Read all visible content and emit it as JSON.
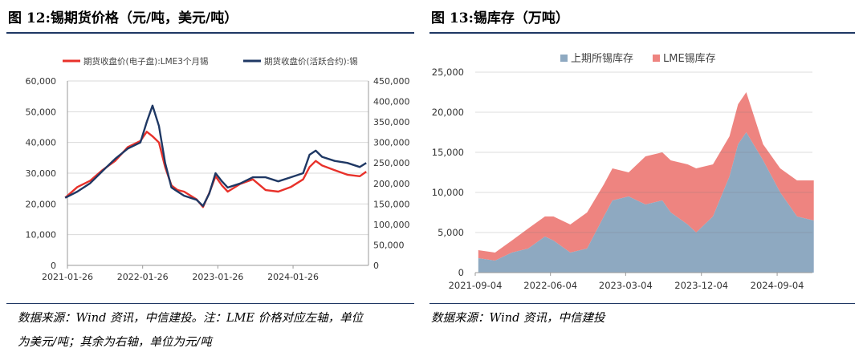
{
  "figures": {
    "left_title": "图 12:锡期货价格（元/吨，美元/吨）",
    "right_title": "图 13:锡库存（万吨）"
  },
  "notes": {
    "left_line1": "数据来源：Wind 资讯，中信建投。注：LME 价格对应左轴，单位",
    "left_line2": "为美元/吨；其余为右轴，单位为元/吨",
    "right_line1": "数据来源：Wind 资讯，中信建投"
  },
  "colors": {
    "red": "#e8312a",
    "navy": "#1f3864",
    "gray_blue": "#8ea9c1",
    "salmon": "#ee8480",
    "grid": "#d9d9d9"
  },
  "chart_data": [
    {
      "type": "line",
      "legend_placement": "top",
      "grid": true,
      "x_ticks": [
        "2021-01-26",
        "2022-01-26",
        "2023-01-26",
        "2024-01-26"
      ],
      "x_range": [
        "2021-01-26",
        "2025-01-26"
      ],
      "y_left": {
        "range": [
          0,
          60000
        ],
        "ticks": [
          "0",
          "10,000",
          "20,000",
          "30,000",
          "40,000",
          "50,000",
          "60,000"
        ]
      },
      "y_right": {
        "range": [
          0,
          450000
        ],
        "ticks": [
          "0",
          "50,000",
          "100,000",
          "150,000",
          "200,000",
          "250,000",
          "300,000",
          "350,000",
          "400,000",
          "450,000"
        ]
      },
      "x": [
        "2021-01",
        "2021-03",
        "2021-05",
        "2021-07",
        "2021-09",
        "2021-11",
        "2022-01",
        "2022-02",
        "2022-03",
        "2022-04",
        "2022-05",
        "2022-06",
        "2022-07",
        "2022-08",
        "2022-10",
        "2022-11",
        "2022-12",
        "2023-01",
        "2023-02",
        "2023-03",
        "2023-05",
        "2023-07",
        "2023-09",
        "2023-11",
        "2024-01",
        "2024-03",
        "2024-04",
        "2024-05",
        "2024-06",
        "2024-08",
        "2024-10",
        "2024-12",
        "2025-01"
      ],
      "series": [
        {
          "name": "期货收盘价(电子盘):LME3个月锡",
          "axis": "left",
          "color": "#e8312a",
          "values": [
            22000,
            25500,
            27500,
            31000,
            34000,
            38500,
            40500,
            43500,
            42000,
            40000,
            32000,
            26000,
            24500,
            24000,
            21500,
            19000,
            23500,
            29000,
            26000,
            24000,
            26500,
            28000,
            24500,
            24000,
            25500,
            28000,
            32000,
            34000,
            32500,
            31000,
            29500,
            29000,
            30500
          ]
        },
        {
          "name": "期货收盘价(活跃合约):锡",
          "axis": "right",
          "color": "#1f3864",
          "values": [
            165000,
            180000,
            200000,
            230000,
            260000,
            285000,
            300000,
            350000,
            390000,
            340000,
            250000,
            190000,
            180000,
            170000,
            160000,
            145000,
            175000,
            225000,
            205000,
            190000,
            200000,
            215000,
            215000,
            205000,
            215000,
            225000,
            270000,
            280000,
            265000,
            255000,
            250000,
            240000,
            250000
          ]
        }
      ]
    },
    {
      "type": "area",
      "stacked": true,
      "legend_placement": "top",
      "grid": true,
      "x_ticks": [
        "2021-09-04",
        "2022-06-04",
        "2023-03-04",
        "2023-12-04",
        "2024-09-04"
      ],
      "x_range": [
        "2021-09-04",
        "2025-01-10"
      ],
      "y": {
        "range": [
          0,
          25000
        ],
        "ticks": [
          "0",
          "5,000",
          "10,000",
          "15,000",
          "20,000",
          "25,000"
        ]
      },
      "x": [
        "2021-09",
        "2021-11",
        "2022-01",
        "2022-03",
        "2022-05",
        "2022-06",
        "2022-08",
        "2022-10",
        "2022-12",
        "2023-01",
        "2023-03",
        "2023-05",
        "2023-07",
        "2023-08",
        "2023-10",
        "2023-11",
        "2024-01",
        "2024-03",
        "2024-04",
        "2024-05",
        "2024-07",
        "2024-09",
        "2024-11",
        "2025-01"
      ],
      "series": [
        {
          "name": "上期所锡库存",
          "color": "#8ea9c1",
          "values": [
            1800,
            1500,
            2500,
            3000,
            4500,
            4000,
            2500,
            3000,
            7000,
            9000,
            9500,
            8500,
            9000,
            7500,
            6000,
            5000,
            7000,
            12000,
            16000,
            17500,
            14000,
            10000,
            7000,
            6500
          ]
        },
        {
          "name": "LME锡库存",
          "color": "#ee8480",
          "values": [
            1000,
            1000,
            1500,
            2500,
            2500,
            3000,
            3500,
            4500,
            4000,
            4000,
            3000,
            6000,
            6000,
            6500,
            7500,
            8000,
            6500,
            5000,
            5000,
            5000,
            2000,
            3000,
            4500,
            5000
          ]
        }
      ]
    }
  ]
}
